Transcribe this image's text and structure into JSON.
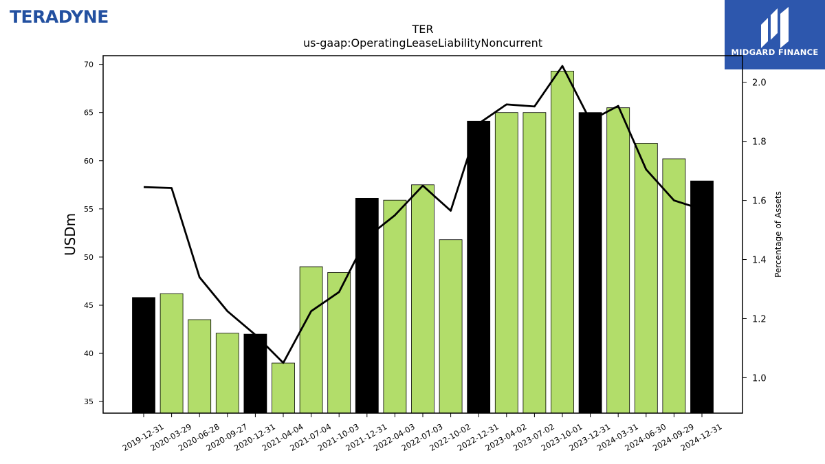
{
  "branding": {
    "company_logo_text": "TERADYNE",
    "publisher_name": "MIDGARD FINANCE",
    "box_color": "#2d57ad",
    "logo_color": "#2350a0"
  },
  "chart_data": {
    "type": "bar",
    "title": "TER",
    "subtitle": "us-gaap:OperatingLeaseLiabilityNoncurrent",
    "ylabel": "USDm",
    "y2label": "Percentage of Assets",
    "ylim": [
      33.8,
      70.9
    ],
    "y2lim": [
      0.88,
      2.09
    ],
    "yticks": [
      35,
      40,
      45,
      50,
      55,
      60,
      65,
      70
    ],
    "y2ticks": [
      "1.0",
      "1.2",
      "1.4",
      "1.6",
      "1.8",
      "2.0"
    ],
    "categories": [
      "2019-12-31",
      "2020-03-29",
      "2020-06-28",
      "2020-09-27",
      "2020-12-31",
      "2021-04-04",
      "2021-07-04",
      "2021-10-03",
      "2021-12-31",
      "2022-04-03",
      "2022-07-03",
      "2022-10-02",
      "2022-12-31",
      "2023-04-02",
      "2023-07-02",
      "2023-10-01",
      "2023-12-31",
      "2024-03-31",
      "2024-06-30",
      "2024-09-29",
      "2024-12-31"
    ],
    "series": [
      {
        "axis": "left",
        "kind": "bar",
        "values": [
          45.8,
          46.2,
          43.5,
          42.1,
          42.0,
          39.0,
          49.0,
          48.4,
          56.1,
          55.9,
          57.5,
          51.8,
          64.1,
          65.0,
          65.0,
          69.3,
          65.0,
          65.5,
          61.8,
          60.2,
          57.9
        ],
        "year_end": [
          true,
          false,
          false,
          false,
          true,
          false,
          false,
          false,
          true,
          false,
          false,
          false,
          true,
          false,
          false,
          false,
          true,
          false,
          false,
          false,
          true
        ]
      },
      {
        "axis": "right",
        "kind": "line",
        "values": [
          1.645,
          1.642,
          1.34,
          1.225,
          1.145,
          1.05,
          1.225,
          1.29,
          1.475,
          1.55,
          1.65,
          1.565,
          1.86,
          1.925,
          1.918,
          2.055,
          1.87,
          1.92,
          1.705,
          1.6,
          1.57
        ]
      }
    ],
    "colors": {
      "bar": "#b2dd6a",
      "bar_year_end": "#000000",
      "line": "#000000",
      "bar_edge": "#000000"
    },
    "grid": false,
    "legend": "none"
  }
}
